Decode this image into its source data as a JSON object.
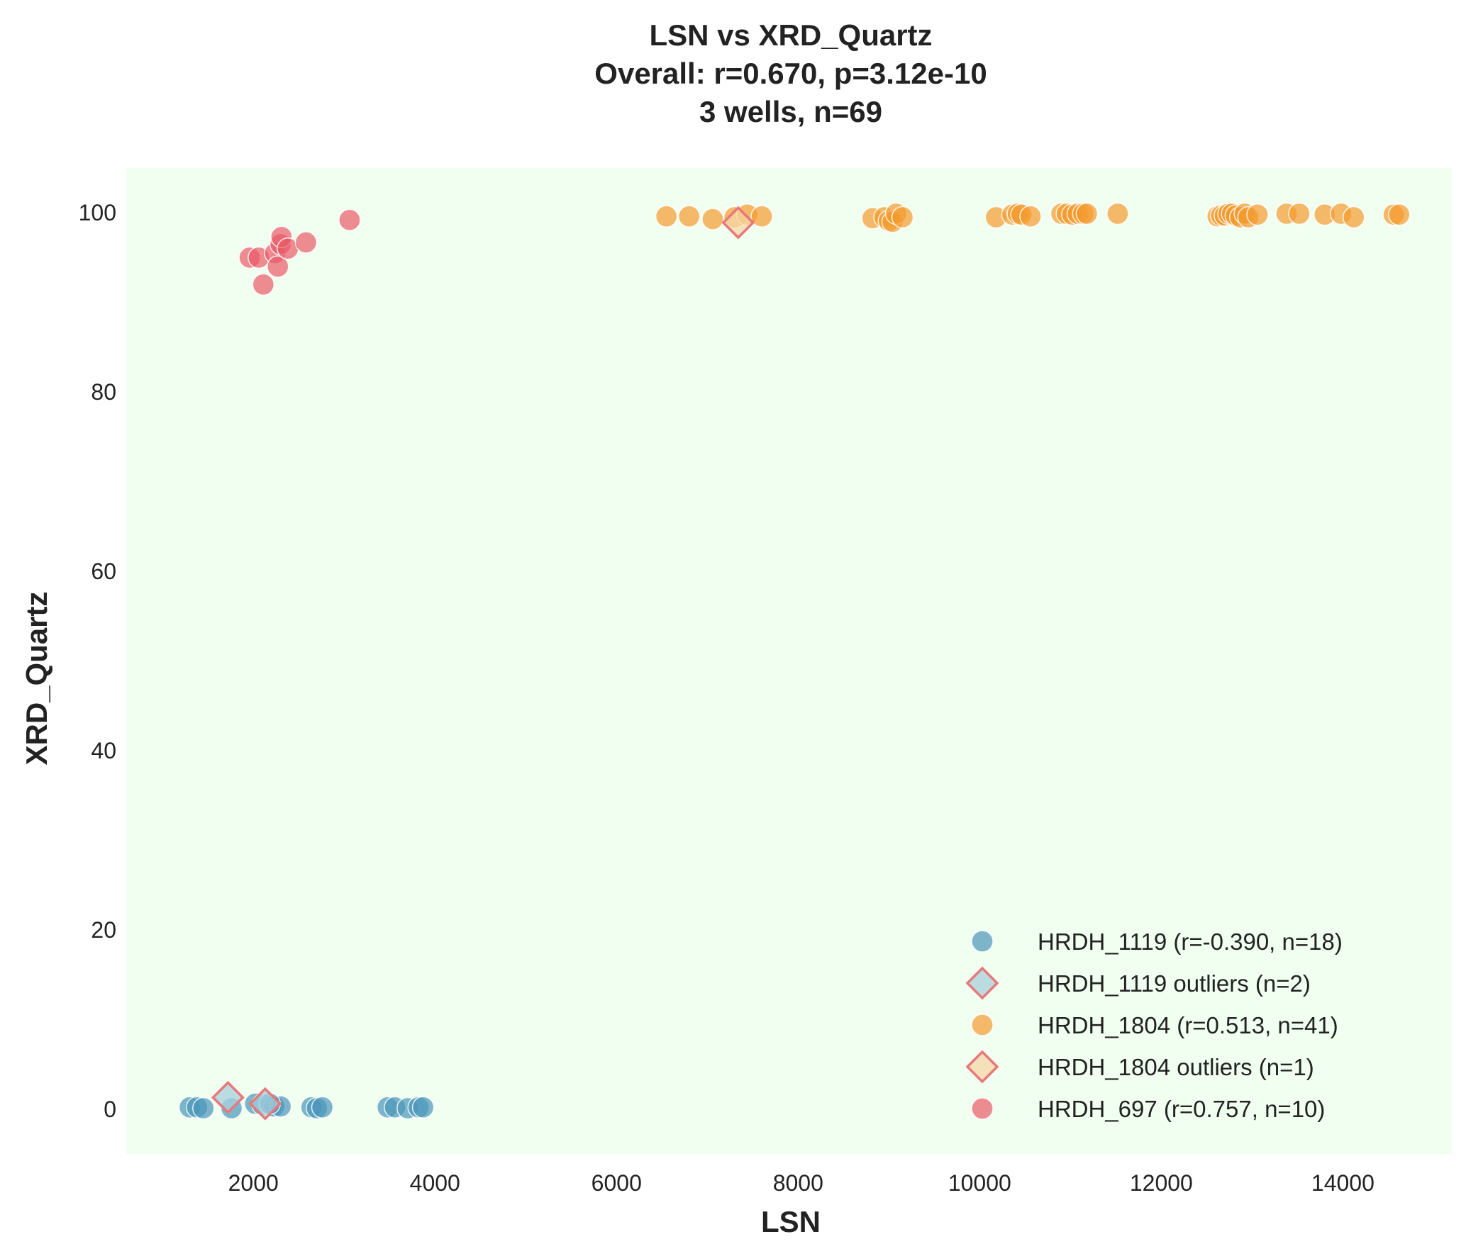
{
  "chart_data": {
    "type": "scatter",
    "title_lines": [
      "LSN vs XRD_Quartz",
      "Overall: r=0.670, p=3.12e-10",
      "3 wells, n=69"
    ],
    "xlabel": "LSN",
    "ylabel": "XRD_Quartz",
    "xlim": [
      600,
      15200
    ],
    "ylim": [
      -5,
      105
    ],
    "x_ticks": [
      2000,
      4000,
      6000,
      8000,
      10000,
      12000,
      14000
    ],
    "y_ticks": [
      0,
      20,
      40,
      60,
      80,
      100
    ],
    "x_tick_labels": [
      "2000",
      "4000",
      "6000",
      "8000",
      "10000",
      "12000",
      "14000"
    ],
    "y_tick_labels": [
      "0",
      "20",
      "40",
      "60",
      "80",
      "100"
    ],
    "grid": false,
    "plot_background": "#f0fff0",
    "legend_position": "lower-right",
    "legend": [
      {
        "label": "HRDH_1119 (r=-0.390, n=18)",
        "marker": "circle",
        "color": "#4a96b9"
      },
      {
        "label": "HRDH_1119 outliers (n=2)",
        "marker": "diamond",
        "color": "#a8d0dc",
        "edge": "#e8787a"
      },
      {
        "label": "HRDH_1804 (r=0.513, n=41)",
        "marker": "circle",
        "color": "#f39a2e"
      },
      {
        "label": "HRDH_1804 outliers (n=1)",
        "marker": "diamond",
        "color": "#f6d7a7",
        "edge": "#e8787a"
      },
      {
        "label": "HRDH_697 (r=0.757, n=10)",
        "marker": "circle",
        "color": "#e95a66"
      }
    ],
    "series": [
      {
        "name": "HRDH_1119 (r=-0.390, n=18)",
        "marker": "circle",
        "color": "#4a96b9",
        "points": [
          [
            1300,
            0.2
          ],
          [
            1380,
            0.2
          ],
          [
            1450,
            0.1
          ],
          [
            1760,
            0.1
          ],
          [
            2020,
            0.6
          ],
          [
            2100,
            0.5
          ],
          [
            2200,
            0.4
          ],
          [
            2230,
            0.3
          ],
          [
            2300,
            0.3
          ],
          [
            2640,
            0.2
          ],
          [
            2700,
            0.1
          ],
          [
            2760,
            0.2
          ],
          [
            3480,
            0.2
          ],
          [
            3560,
            0.2
          ],
          [
            3700,
            0.1
          ],
          [
            3820,
            0.2
          ],
          [
            3870,
            0.2
          ],
          [
            2180,
            0.6
          ]
        ]
      },
      {
        "name": "HRDH_1119 outliers (n=2)",
        "marker": "diamond",
        "color": "#a8d0dc",
        "edge": "#e8787a",
        "points": [
          [
            1720,
            1.3
          ],
          [
            2130,
            0.6
          ]
        ]
      },
      {
        "name": "HRDH_1804 (r=0.513, n=41)",
        "marker": "circle",
        "color": "#f39a2e",
        "points": [
          [
            6550,
            99.6
          ],
          [
            6800,
            99.6
          ],
          [
            7060,
            99.3
          ],
          [
            7300,
            99.5
          ],
          [
            7440,
            99.8
          ],
          [
            7600,
            99.6
          ],
          [
            8820,
            99.4
          ],
          [
            8950,
            99.5
          ],
          [
            9000,
            99.1
          ],
          [
            9040,
            99.0
          ],
          [
            9080,
            99.9
          ],
          [
            9150,
            99.5
          ],
          [
            10180,
            99.5
          ],
          [
            10360,
            99.8
          ],
          [
            10420,
            99.9
          ],
          [
            10460,
            99.8
          ],
          [
            10560,
            99.6
          ],
          [
            10900,
            99.9
          ],
          [
            10960,
            99.9
          ],
          [
            11020,
            99.8
          ],
          [
            11080,
            99.9
          ],
          [
            11140,
            99.9
          ],
          [
            11180,
            99.9
          ],
          [
            11520,
            99.9
          ],
          [
            12620,
            99.6
          ],
          [
            12660,
            99.7
          ],
          [
            12700,
            99.7
          ],
          [
            12740,
            99.9
          ],
          [
            12780,
            99.9
          ],
          [
            12820,
            99.7
          ],
          [
            12870,
            99.5
          ],
          [
            12920,
            99.9
          ],
          [
            12960,
            99.5
          ],
          [
            13060,
            99.8
          ],
          [
            13380,
            99.9
          ],
          [
            13520,
            99.9
          ],
          [
            13800,
            99.8
          ],
          [
            13980,
            99.9
          ],
          [
            14120,
            99.5
          ],
          [
            14560,
            99.8
          ],
          [
            14620,
            99.8
          ]
        ]
      },
      {
        "name": "HRDH_1804 outliers (n=1)",
        "marker": "diamond",
        "color": "#f6d7a7",
        "edge": "#e8787a",
        "points": [
          [
            7340,
            98.9
          ]
        ]
      },
      {
        "name": "HRDH_697 (r=0.757, n=10)",
        "marker": "circle",
        "color": "#e95a66",
        "points": [
          [
            1960,
            95.0
          ],
          [
            2060,
            95.0
          ],
          [
            2110,
            92.0
          ],
          [
            2240,
            95.5
          ],
          [
            2270,
            94.0
          ],
          [
            2300,
            96.5
          ],
          [
            2310,
            97.3
          ],
          [
            2380,
            96.0
          ],
          [
            2580,
            96.7
          ],
          [
            3060,
            99.2
          ]
        ]
      }
    ]
  }
}
